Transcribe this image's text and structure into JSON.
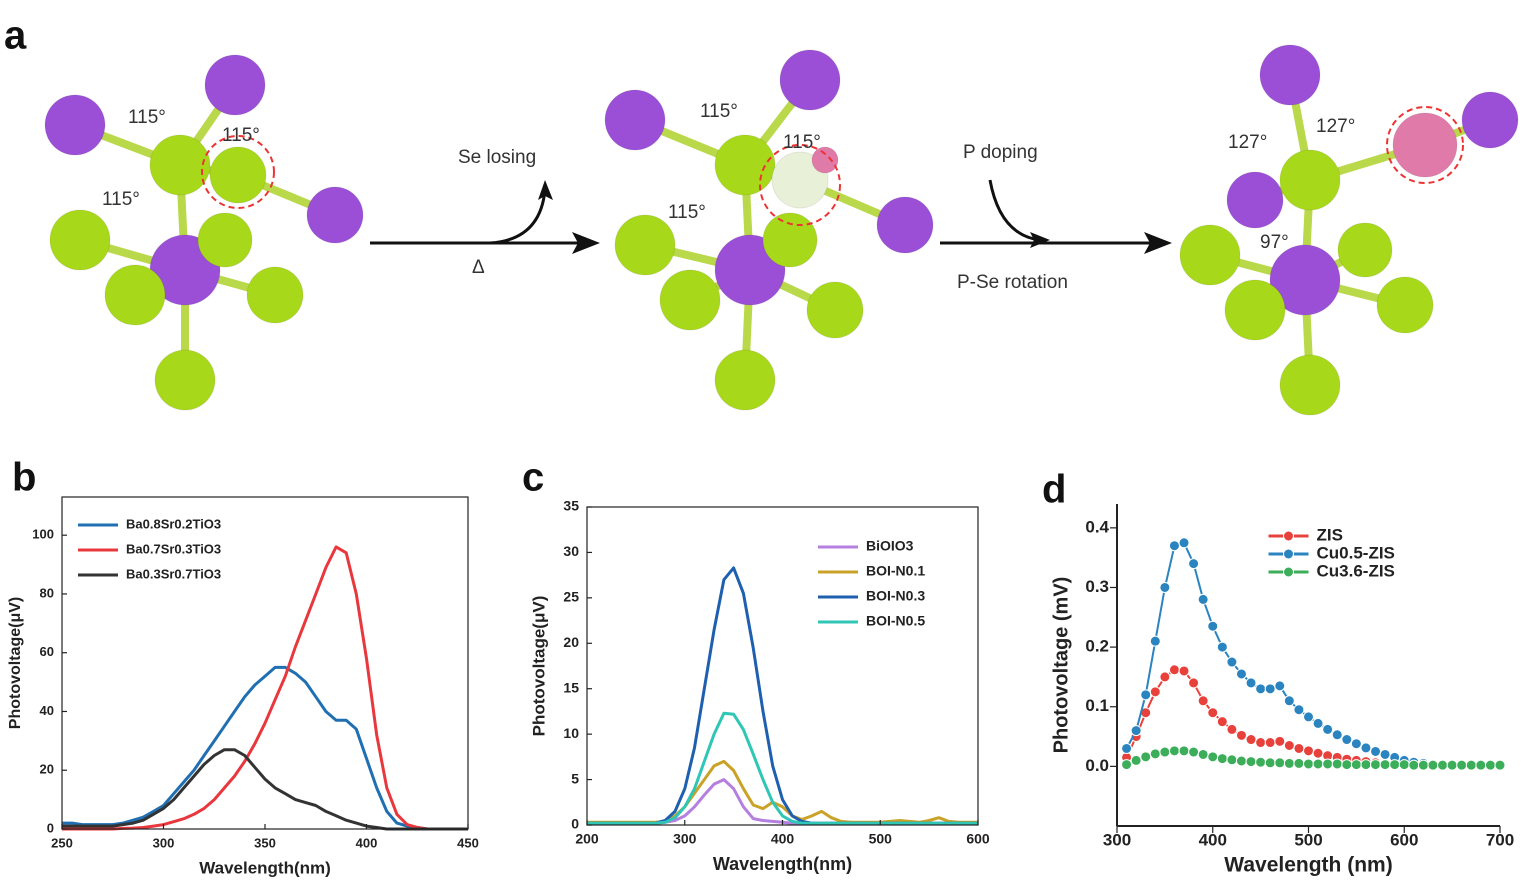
{
  "diagram": {
    "panel": "a",
    "left_angles": [
      "115°",
      "115°",
      "115°"
    ],
    "middle_angles": [
      "115°",
      "115°",
      "115°"
    ],
    "right_angles": [
      "127°",
      "127°",
      "97°"
    ],
    "step1_top": "Se losing",
    "step1_bottom": "Δ",
    "step2_top": "P doping",
    "step2_bottom": "P-Se rotation"
  },
  "chart_data": [
    {
      "type": "line",
      "panel": "b",
      "xlabel": "Wavelength(nm)",
      "ylabel": "Photovoltage(μV)",
      "xlim": [
        250,
        450
      ],
      "xticks": [
        250,
        300,
        350,
        400,
        450
      ],
      "ylim": [
        0,
        113
      ],
      "yticks": [
        0,
        20,
        40,
        60,
        80,
        100
      ],
      "legend": "upper left",
      "x": [
        250,
        255,
        260,
        265,
        270,
        275,
        280,
        285,
        290,
        295,
        300,
        305,
        310,
        315,
        320,
        325,
        330,
        335,
        340,
        345,
        350,
        355,
        360,
        365,
        370,
        375,
        380,
        385,
        390,
        395,
        400,
        405,
        410,
        415,
        420,
        425,
        430,
        435,
        440,
        445,
        450
      ],
      "series": [
        {
          "name": "Ba0.8Sr0.2TiO3",
          "color": "#1f6fb2",
          "values": [
            2,
            2,
            1.5,
            1.5,
            1.5,
            1.5,
            2,
            3,
            4,
            6,
            8,
            12,
            16,
            20,
            25,
            30,
            35,
            40,
            45,
            49,
            52,
            55,
            55,
            53,
            50,
            45,
            40,
            37,
            37,
            34,
            24,
            14,
            6,
            2,
            1,
            0.5,
            0,
            0,
            0,
            0,
            0
          ]
        },
        {
          "name": "Ba0.7Sr0.3TiO3",
          "color": "#e8383d",
          "values": [
            0,
            0,
            0,
            0,
            0,
            0,
            0.2,
            0.3,
            0.5,
            1,
            1.5,
            2.5,
            3.5,
            5,
            7,
            10,
            14,
            18,
            23,
            29,
            36,
            44,
            52,
            62,
            71,
            80,
            89,
            96,
            94,
            80,
            58,
            32,
            14,
            5,
            1.5,
            0.5,
            0,
            0,
            0,
            0,
            0
          ]
        },
        {
          "name": "Ba0.3Sr0.7TiO3",
          "color": "#333333",
          "values": [
            1,
            1,
            1,
            1,
            1,
            1,
            1.5,
            2,
            3,
            5,
            7,
            10,
            14,
            18,
            22,
            25,
            27,
            27,
            25,
            21,
            17,
            14,
            12,
            10,
            9,
            8,
            6,
            4.5,
            3,
            2,
            1,
            0.5,
            0,
            0,
            0,
            0,
            0,
            0,
            0,
            0,
            0
          ]
        }
      ]
    },
    {
      "type": "line",
      "panel": "c",
      "xlabel": "Wavelength(nm)",
      "ylabel": "Photovoltage(μV)",
      "xlim": [
        200,
        600
      ],
      "xticks": [
        200,
        300,
        400,
        500,
        600
      ],
      "ylim": [
        0,
        35
      ],
      "yticks": [
        0,
        5,
        10,
        15,
        20,
        25,
        30,
        35
      ],
      "legend": "upper right",
      "x": [
        200,
        210,
        220,
        230,
        240,
        250,
        260,
        270,
        280,
        290,
        300,
        310,
        320,
        330,
        340,
        350,
        360,
        370,
        380,
        390,
        400,
        410,
        420,
        430,
        440,
        450,
        460,
        470,
        480,
        490,
        500,
        510,
        520,
        530,
        540,
        550,
        560,
        570,
        580,
        590,
        600
      ],
      "series": [
        {
          "name": "BiOIO3",
          "color": "#b57fe0",
          "values": [
            0.2,
            0.2,
            0.2,
            0.2,
            0.2,
            0.2,
            0.2,
            0.2,
            0.3,
            0.5,
            1,
            2,
            3.3,
            4.5,
            5,
            4,
            2,
            0.7,
            0.5,
            0.4,
            0.3,
            0.2,
            0.2,
            0.2,
            0.2,
            0.2,
            0.2,
            0.2,
            0.2,
            0.2,
            0.2,
            0.2,
            0.2,
            0.2,
            0.2,
            0.2,
            0.2,
            0.2,
            0.2,
            0.2,
            0.2
          ]
        },
        {
          "name": "BOI-N0.1",
          "color": "#c9a227",
          "values": [
            0.3,
            0.3,
            0.3,
            0.3,
            0.3,
            0.3,
            0.3,
            0.3,
            0.4,
            1,
            2,
            3.5,
            5,
            6.5,
            7,
            6,
            4,
            2.2,
            1.8,
            2.5,
            2,
            1,
            0.6,
            1,
            1.5,
            0.8,
            0.4,
            0.3,
            0.3,
            0.3,
            0.3,
            0.4,
            0.5,
            0.4,
            0.3,
            0.5,
            0.8,
            0.4,
            0.3,
            0.3,
            0.3
          ]
        },
        {
          "name": "BOI-N0.3",
          "color": "#1f5fb0",
          "values": [
            0.2,
            0.2,
            0.2,
            0.2,
            0.2,
            0.2,
            0.2,
            0.2,
            0.5,
            1.5,
            4,
            8.5,
            15,
            21.5,
            27,
            28.3,
            25.5,
            19.5,
            12.5,
            6.5,
            2.8,
            1,
            0.4,
            0.2,
            0.2,
            0.2,
            0.2,
            0.2,
            0.2,
            0.2,
            0.2,
            0.2,
            0.2,
            0.2,
            0.2,
            0.2,
            0.2,
            0.2,
            0.2,
            0.2,
            0.2
          ]
        },
        {
          "name": "BOI-N0.5",
          "color": "#2fc6b6",
          "values": [
            0.2,
            0.2,
            0.2,
            0.2,
            0.2,
            0.2,
            0.2,
            0.2,
            0.3,
            0.8,
            2,
            4,
            7,
            10,
            12.3,
            12.2,
            10.5,
            7.8,
            5,
            2.5,
            1,
            0.4,
            0.2,
            0.2,
            0.2,
            0.2,
            0.2,
            0.2,
            0.2,
            0.2,
            0.2,
            0.2,
            0.2,
            0.2,
            0.2,
            0.2,
            0.2,
            0.2,
            0.2,
            0.2,
            0.2
          ]
        }
      ]
    },
    {
      "type": "line",
      "panel": "d",
      "xlabel": "Wavelength (nm)",
      "ylabel": "Photovoltage (mV)",
      "xlim": [
        300,
        700
      ],
      "xticks": [
        300,
        400,
        500,
        600,
        700
      ],
      "ylim": [
        -0.1,
        0.44
      ],
      "yticks": [
        {
          "value": 0,
          "label": "0.0"
        },
        0.1,
        0.2,
        0.3,
        0.4
      ],
      "legend": "upper center",
      "marker": "circle",
      "x": [
        310,
        320,
        330,
        340,
        350,
        360,
        370,
        380,
        390,
        400,
        410,
        420,
        430,
        440,
        450,
        460,
        470,
        480,
        490,
        500,
        510,
        520,
        530,
        540,
        550,
        560,
        570,
        580,
        590,
        600,
        610,
        620,
        630,
        640,
        650,
        660,
        670,
        680,
        690,
        700
      ],
      "series": [
        {
          "name": "ZIS",
          "color": "#e8413c",
          "values": [
            0.015,
            0.05,
            0.09,
            0.125,
            0.15,
            0.162,
            0.16,
            0.14,
            0.11,
            0.09,
            0.075,
            0.062,
            0.052,
            0.045,
            0.04,
            0.04,
            0.042,
            0.035,
            0.03,
            0.026,
            0.022,
            0.018,
            0.015,
            0.012,
            0.01,
            0.008,
            0.006,
            0.005,
            0.004,
            0.003,
            null,
            null,
            null,
            null,
            null,
            null,
            null,
            null,
            null,
            null
          ]
        },
        {
          "name": "Cu0.5-ZIS",
          "color": "#2a84c0",
          "values": [
            0.03,
            0.06,
            0.12,
            0.21,
            0.3,
            0.37,
            0.375,
            0.34,
            0.28,
            0.235,
            0.2,
            0.175,
            0.155,
            0.14,
            0.13,
            0.13,
            0.135,
            0.11,
            0.095,
            0.083,
            0.072,
            0.062,
            0.053,
            0.045,
            0.038,
            0.031,
            0.025,
            0.02,
            0.015,
            0.01,
            0.007,
            0.005,
            null,
            null,
            null,
            null,
            null,
            null,
            null,
            null
          ]
        },
        {
          "name": "Cu3.6-ZIS",
          "color": "#3cae5a",
          "values": [
            0.003,
            0.01,
            0.016,
            0.021,
            0.024,
            0.026,
            0.026,
            0.024,
            0.02,
            0.016,
            0.013,
            0.011,
            0.009,
            0.008,
            0.007,
            0.006,
            0.006,
            0.005,
            0.005,
            0.004,
            0.004,
            0.004,
            0.004,
            0.003,
            0.003,
            0.003,
            0.003,
            0.003,
            0.003,
            0.003,
            0.002,
            0.002,
            0.002,
            0.002,
            0.002,
            0.002,
            0.002,
            0.002,
            0.002,
            0.002
          ]
        }
      ]
    }
  ]
}
